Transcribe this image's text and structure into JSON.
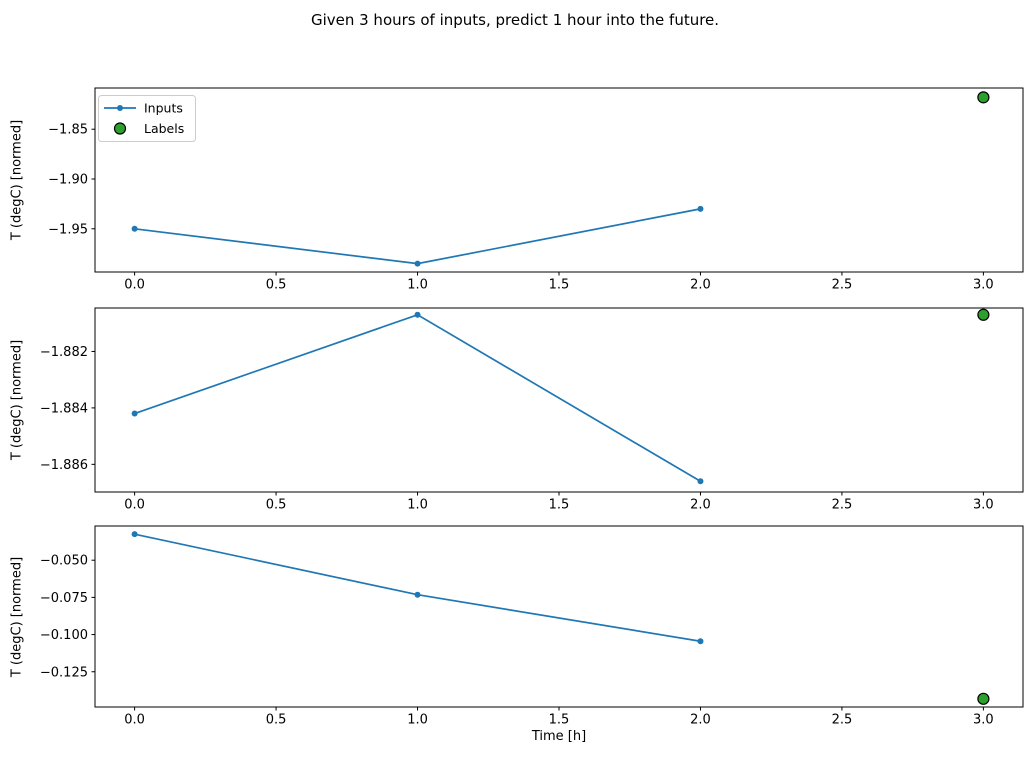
{
  "figure": {
    "title": "Given 3 hours of inputs, predict 1 hour into the future.",
    "xlabel": "Time [h]"
  },
  "legend": {
    "position": "upper left",
    "items": [
      {
        "label": "Inputs",
        "marker": "line-with-dot"
      },
      {
        "label": "Labels",
        "marker": "filled-circle"
      }
    ]
  },
  "colors": {
    "inputs_line": "#1f77b4",
    "labels_fill": "#2ca02c",
    "labels_edge": "#000000",
    "axis": "#000000",
    "legend_border": "#cccccc",
    "background": "#ffffff"
  },
  "chart_data": [
    {
      "type": "line",
      "ylabel": "T (degC) [normed]",
      "xlabel": "",
      "series": [
        {
          "name": "Inputs",
          "type": "line+marker",
          "x": [
            0,
            1,
            2
          ],
          "y": [
            -1.95,
            -1.985,
            -1.93
          ]
        },
        {
          "name": "Labels",
          "type": "scatter",
          "x": [
            3
          ],
          "y": [
            -1.818
          ]
        }
      ],
      "xlim": [
        -0.14,
        3.14
      ],
      "ylim": [
        -1.9934,
        -1.8086
      ],
      "xtick_values": [
        0,
        0.5,
        1,
        1.5,
        2,
        2.5,
        3
      ],
      "xtick_labels": [
        "0.0",
        "0.5",
        "1.0",
        "1.5",
        "2.0",
        "2.5",
        "3.0"
      ],
      "ytick_values": [
        -1.85,
        -1.9,
        -1.95
      ],
      "ytick_labels": [
        "−1.85",
        "−1.90",
        "−1.95"
      ],
      "legend": true,
      "grid": false
    },
    {
      "type": "line",
      "ylabel": "T (degC) [normed]",
      "xlabel": "",
      "series": [
        {
          "name": "Inputs",
          "type": "line+marker",
          "x": [
            0,
            1,
            2
          ],
          "y": [
            -1.8842,
            -1.8807,
            -1.8866
          ]
        },
        {
          "name": "Labels",
          "type": "scatter",
          "x": [
            3
          ],
          "y": [
            -1.8807
          ]
        }
      ],
      "xlim": [
        -0.14,
        3.14
      ],
      "ylim": [
        -1.88698,
        -1.88046
      ],
      "xtick_values": [
        0,
        0.5,
        1,
        1.5,
        2,
        2.5,
        3
      ],
      "xtick_labels": [
        "0.0",
        "0.5",
        "1.0",
        "1.5",
        "2.0",
        "2.5",
        "3.0"
      ],
      "ytick_values": [
        -1.882,
        -1.884,
        -1.886
      ],
      "ytick_labels": [
        "−1.882",
        "−1.884",
        "−1.886"
      ],
      "legend": false,
      "grid": false
    },
    {
      "type": "line",
      "ylabel": "T (degC) [normed]",
      "xlabel": "Time [h]",
      "series": [
        {
          "name": "Inputs",
          "type": "line+marker",
          "x": [
            0,
            1,
            2
          ],
          "y": [
            -0.0325,
            -0.0732,
            -0.1045
          ]
        },
        {
          "name": "Labels",
          "type": "scatter",
          "x": [
            3
          ],
          "y": [
            -0.1432
          ]
        }
      ],
      "xlim": [
        -0.14,
        3.14
      ],
      "ylim": [
        -0.1487,
        -0.027
      ],
      "xtick_values": [
        0,
        0.5,
        1,
        1.5,
        2,
        2.5,
        3
      ],
      "xtick_labels": [
        "0.0",
        "0.5",
        "1.0",
        "1.5",
        "2.0",
        "2.5",
        "3.0"
      ],
      "ytick_values": [
        -0.05,
        -0.075,
        -0.1,
        -0.125
      ],
      "ytick_labels": [
        "−0.050",
        "−0.075",
        "−0.100",
        "−0.125"
      ],
      "legend": false,
      "grid": false
    }
  ]
}
